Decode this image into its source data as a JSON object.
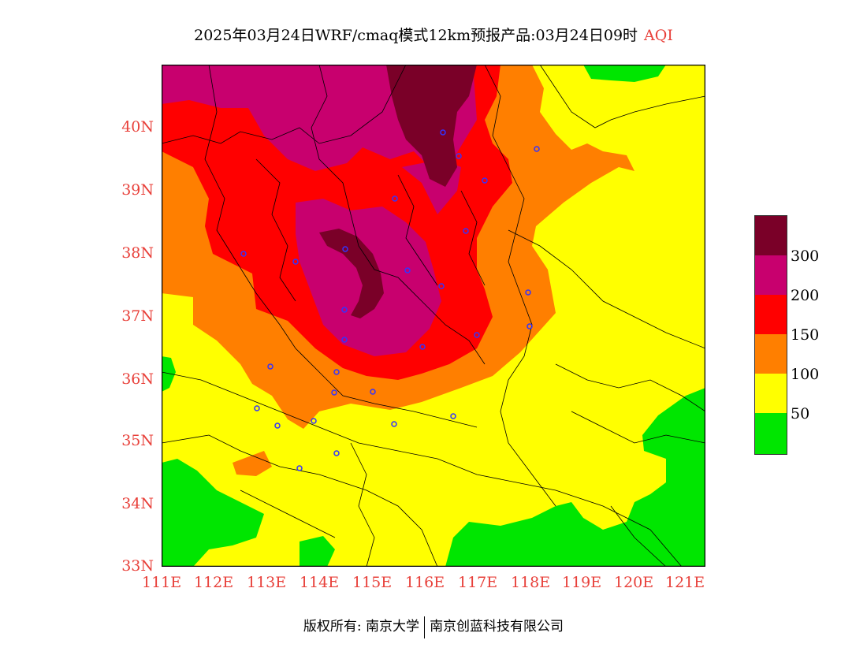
{
  "title": {
    "main": "2025年03月24日WRF/cmaq模式12km预报产品:03月24日09时",
    "var": "AQI"
  },
  "axes": {
    "lat_labels": [
      "40N",
      "39N",
      "38N",
      "37N",
      "36N",
      "35N",
      "34N",
      "33N"
    ],
    "lon_labels": [
      "111E",
      "112E",
      "113E",
      "114E",
      "115E",
      "116E",
      "117E",
      "118E",
      "119E",
      "120E",
      "121E"
    ]
  },
  "legend": {
    "labels": [
      "300",
      "200",
      "150",
      "100",
      "50"
    ],
    "colors": [
      "#7a0028",
      "#c8006e",
      "#ff0000",
      "#ff7f00",
      "#ffff00",
      "#00e600"
    ]
  },
  "footer": {
    "left": "版权所有: 南京大学",
    "right": "南京创蓝科技有限公司"
  },
  "colors": {
    "severe": "#7a0028",
    "very_unhealthy": "#c8006e",
    "unhealthy": "#ff0000",
    "sensitive": "#ff7f00",
    "moderate": "#ffff00",
    "good": "#00e600",
    "station": "#3333ff",
    "axis_text": "#e8403a"
  }
}
